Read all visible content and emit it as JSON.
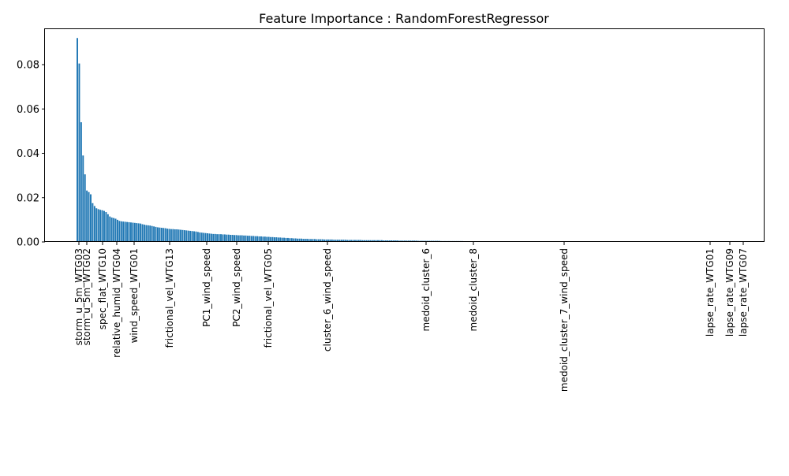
{
  "chart_data": {
    "type": "bar",
    "title": "Feature Importance : RandomForestRegressor",
    "xlabel": "",
    "ylabel": "",
    "ylim": [
      0,
      0.096
    ],
    "yticks": [
      0.0,
      0.02,
      0.04,
      0.06,
      0.08
    ],
    "ytick_labels": [
      "0.00",
      "0.02",
      "0.04",
      "0.06",
      "0.08"
    ],
    "bar_color": "#1f77b4",
    "tick_label_rotation": "vertical",
    "visible_category_labels": [
      "storm_u_5m_WTG03",
      "storm_u_5m_WTG02",
      "spec_flat_WTG10",
      "relative_humid_WTG04",
      "wind_speed_WTG01",
      "frictional_vel_WTG13",
      "PC1_wind_speed",
      "PC2_wind_speed",
      "frictional_vel_WTG05",
      "cluster_6_wind_speed",
      "medoid_cluster_6",
      "medoid_cluster_8",
      "medoid_cluster_7_wind_speed",
      "lapse_rate_WTG01",
      "lapse_rate_WTG09",
      "lapse_rate_WTG07"
    ],
    "values": [
      0.092,
      0.0805,
      0.054,
      0.039,
      0.0305,
      0.0232,
      0.0225,
      0.0215,
      0.0175,
      0.0162,
      0.0152,
      0.0148,
      0.0145,
      0.0143,
      0.014,
      0.0135,
      0.0125,
      0.0115,
      0.011,
      0.0108,
      0.0105,
      0.01,
      0.0095,
      0.0093,
      0.0092,
      0.0091,
      0.009,
      0.0089,
      0.0088,
      0.0087,
      0.0086,
      0.0085,
      0.0084,
      0.0083,
      0.008,
      0.0078,
      0.0076,
      0.0075,
      0.0074,
      0.0072,
      0.007,
      0.0068,
      0.0066,
      0.0065,
      0.0064,
      0.0063,
      0.0062,
      0.006,
      0.0059,
      0.0058,
      0.0058,
      0.0057,
      0.0057,
      0.0056,
      0.0055,
      0.0054,
      0.0053,
      0.0052,
      0.0051,
      0.005,
      0.0049,
      0.0048,
      0.0047,
      0.0045,
      0.0043,
      0.0042,
      0.0041,
      0.004,
      0.0039,
      0.0038,
      0.0037,
      0.0036,
      0.0036,
      0.0035,
      0.0035,
      0.0035,
      0.0034,
      0.0034,
      0.0033,
      0.0033,
      0.0032,
      0.0032,
      0.0031,
      0.0031,
      0.003,
      0.003,
      0.003,
      0.0029,
      0.0029,
      0.0028,
      0.0028,
      0.0027,
      0.0027,
      0.0026,
      0.0026,
      0.0025,
      0.0025,
      0.0024,
      0.0024,
      0.0023,
      0.0023,
      0.0022,
      0.0022,
      0.0021,
      0.0021,
      0.002,
      0.002,
      0.0019,
      0.0019,
      0.0018,
      0.0018,
      0.0017,
      0.0017,
      0.0016,
      0.0016,
      0.0015,
      0.0015,
      0.0015,
      0.0014,
      0.0014,
      0.0014,
      0.0013,
      0.0013,
      0.0013,
      0.0013,
      0.0012,
      0.0012,
      0.0012,
      0.0012,
      0.0011,
      0.0011,
      0.0011,
      0.0011,
      0.0011,
      0.001,
      0.001,
      0.001,
      0.001,
      0.001,
      0.001,
      0.001,
      0.0009,
      0.0009,
      0.0009,
      0.0009,
      0.0009,
      0.0009,
      0.0009,
      0.0009,
      0.0008,
      0.0008,
      0.0008,
      0.0008,
      0.0008,
      0.0008,
      0.0008,
      0.0008,
      0.0008,
      0.0008,
      0.0008,
      0.0007,
      0.0007,
      0.0007,
      0.0007,
      0.0007,
      0.0007,
      0.0007,
      0.0007,
      0.0006,
      0.0006,
      0.0006,
      0.0006,
      0.0006,
      0.0006,
      0.0006,
      0.0006,
      0.0006,
      0.0006,
      0.0005,
      0.0005,
      0.0005,
      0.0005,
      0.0005,
      0.0005,
      0.0005,
      0.0005,
      0.0005,
      0.0005,
      0.0005,
      0.0005,
      0.0004,
      0.0004,
      0.0004,
      0.0004,
      0.0004,
      0.0004,
      0.0004,
      0.0004,
      0.0004,
      0.0004,
      0.0004,
      0.0004,
      0.0003,
      0.0003,
      0.0003,
      0.0003,
      0.0003,
      0.0003,
      0.0003,
      0.0003,
      0.0003,
      0.0003,
      0.0003,
      0.0003,
      0.0003,
      0.0003,
      0.0002,
      0.0002,
      0.0002,
      0.0002,
      0.0002,
      0.0002,
      0.0002,
      0.0002,
      0.0002,
      0.0002,
      0.0002,
      0.0002,
      0.0002,
      0.0002,
      0.0002,
      0.0002,
      0.0001,
      0.0001,
      0.0001,
      0.0001,
      0.0001,
      0.0001,
      0.0001,
      0.0001,
      0.0001,
      0.0001,
      0.0001,
      0.0001,
      0.0001,
      0.0001,
      0.0001,
      0.0001,
      0.0001,
      0.0001,
      0.0001,
      0.0001,
      0.0001,
      0.0001,
      0.0001,
      0.0001,
      0.0001,
      0.0001,
      0.0001,
      0.0001,
      0.0001,
      0.0001,
      0.0001,
      0.0001,
      0.0001,
      0.0001,
      0.0001,
      0.0001,
      0.0001,
      0.0001,
      5e-05,
      5e-05,
      5e-05,
      5e-05,
      5e-05,
      5e-05,
      5e-05,
      5e-05,
      5e-05,
      5e-05,
      5e-05,
      5e-05,
      5e-05,
      5e-05,
      5e-05,
      5e-05,
      5e-05,
      5e-05,
      5e-05,
      5e-05,
      3e-05,
      3e-05,
      3e-05,
      3e-05,
      3e-05,
      3e-05,
      3e-05,
      3e-05,
      3e-05,
      3e-05,
      2e-05,
      2e-05,
      2e-05,
      2e-05,
      2e-05,
      2e-05,
      2e-05,
      2e-05,
      2e-05,
      2e-05,
      1e-05,
      1e-05,
      1e-05,
      1e-05,
      1e-05,
      1e-05,
      1e-05,
      1e-05,
      1e-05,
      1e-05,
      1e-05,
      1e-05,
      1e-05,
      1e-05,
      1e-05,
      1e-05,
      1e-05,
      1e-05,
      1e-05,
      1e-05,
      0.0,
      0.0,
      0.0,
      0.0,
      0.0,
      0.0,
      0.0,
      0.0,
      0.0,
      0.0,
      0.0,
      0.0,
      0.0,
      0.0,
      0.0,
      0.0,
      0.0,
      0.0,
      0.0,
      0.0
    ],
    "grid": false,
    "legend": "none"
  }
}
